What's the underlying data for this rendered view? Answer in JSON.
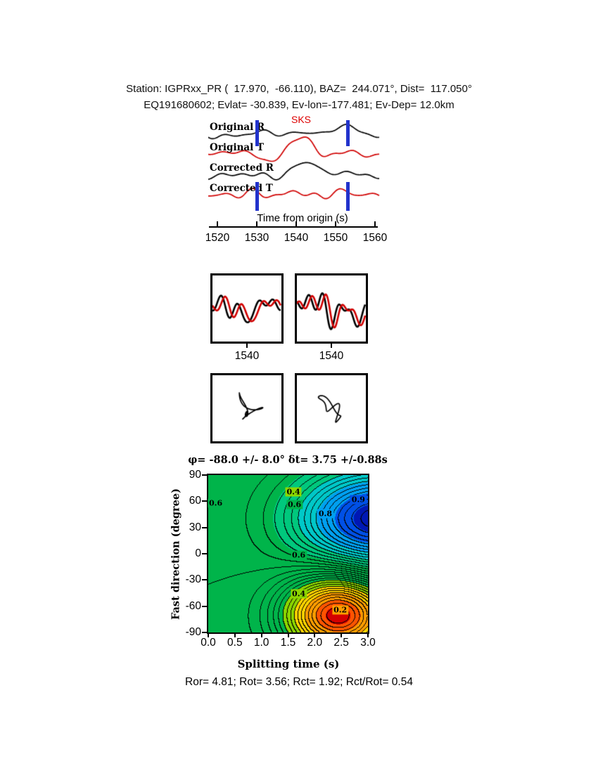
{
  "header": {
    "line1": "Station: IGPRxx_PR (  17.970,  -66.110), BAZ=  244.071°, Dist=  117.050°",
    "line2": "EQ191680602; Evlat= -30.839, Ev-lon=-177.481; Ev-Dep= 12.0km"
  },
  "seismogram": {
    "phase_label": "SKS",
    "phase_label_color": "#dd0000",
    "traces": [
      {
        "label": "Original R",
        "color": "#000000"
      },
      {
        "label": "Original T",
        "color": "#d00000"
      },
      {
        "label": "Corrected R",
        "color": "#000000"
      },
      {
        "label": "Corrected T",
        "color": "#d00000"
      }
    ],
    "window_marker_color": "#2233cc",
    "window_times_s": [
      1530,
      1553
    ],
    "xlabel": "Time from origin (s)",
    "xticks": [
      "1520",
      "1530",
      "1540",
      "1550",
      "1560"
    ]
  },
  "comparison": {
    "trace_colors": [
      "#000000",
      "#d00000"
    ],
    "panels": [
      {
        "tick_label": "1540"
      },
      {
        "tick_label": "1540"
      }
    ]
  },
  "particle_motion": {
    "trace_color": "#000000",
    "panel_count": 2
  },
  "footer": {
    "text": "Ror= 4.81; Rot= 3.56; Rct= 1.92; Rct/Rot= 0.54"
  },
  "chart_data": {
    "type": "heatmap",
    "subtype": "contour-map-of-splitting-misfit",
    "title": "φ= -88.0 +/- 8.0° δt= 3.75 +/-0.88s",
    "xlabel": "Splitting time (s)",
    "ylabel": "Fast direction (degree)",
    "xlim": [
      0.0,
      3.0
    ],
    "ylim": [
      -90,
      90
    ],
    "xticks": [
      "0.0",
      "0.5",
      "1.0",
      "1.5",
      "2.0",
      "2.5",
      "3.0"
    ],
    "yticks": [
      "90",
      "60",
      "30",
      "0",
      "-30",
      "-60",
      "-90"
    ],
    "grid": false,
    "legend": "none",
    "contour_interval": 0.025,
    "best_fit": {
      "fast_direction_deg": -88.0,
      "fast_direction_err_deg": 8.0,
      "splitting_time_s": 3.75,
      "splitting_time_err_s": 0.88
    },
    "quality_stats": {
      "Ror": 4.81,
      "Rot": 3.56,
      "Rct": 1.92,
      "Rct_over_Rot": 0.54
    },
    "labels": [
      {
        "text": "0.4",
        "value": 0.4,
        "dt": 1.6,
        "phi": 71
      },
      {
        "text": "0.6",
        "value": 0.6,
        "dt": 1.62,
        "phi": 56
      },
      {
        "text": "0.8",
        "value": 0.8,
        "dt": 2.2,
        "phi": 46
      },
      {
        "text": "0.9",
        "value": 0.9,
        "dt": 2.82,
        "phi": 62
      },
      {
        "text": "0.6",
        "value": 0.6,
        "dt": 0.14,
        "phi": 58
      },
      {
        "text": "0.6",
        "value": 0.6,
        "dt": 1.7,
        "phi": -2
      },
      {
        "text": "0.4",
        "value": 0.4,
        "dt": 1.7,
        "phi": -46
      },
      {
        "text": "0.2",
        "value": 0.2,
        "dt": 2.48,
        "phi": -64
      }
    ],
    "regions": {
      "high_value_blue": {
        "dt": 3.0,
        "phi": 40,
        "value": 0.95
      },
      "low_value_red": {
        "dt": 2.45,
        "phi": -70,
        "value": 0.1
      },
      "background_green_value": 0.55
    }
  },
  "render": {
    "top_traces": [
      {
        "seed": 11,
        "noise": 5.0,
        "pulse": 10,
        "pulseT": 0.78,
        "pulseW": 0.1,
        "color": "#000000"
      },
      {
        "seed": 22,
        "noise": 5.0,
        "pulse": 26,
        "pulseT": 0.52,
        "pulseW": 0.16,
        "color": "#d00000"
      },
      {
        "seed": 33,
        "noise": 5.0,
        "pulse": 18,
        "pulseT": 0.56,
        "pulseW": 0.14,
        "color": "#000000"
      },
      {
        "seed": 44,
        "noise": 6.0,
        "pulse": 6,
        "pulseT": 0.5,
        "pulseW": 0.12,
        "color": "#d00000"
      }
    ],
    "cmp": [
      {
        "seed": 5,
        "shift": 0.06
      },
      {
        "seed": 9,
        "shift": 0.05
      }
    ],
    "pm": [
      {
        "seed": 7
      },
      {
        "seed": 13
      }
    ],
    "surface": {
      "base": 0.55,
      "peak": {
        "dt": 3.2,
        "phi": 40,
        "sdt": 2.2,
        "sphi": 55,
        "a": 0.42
      },
      "trough": {
        "dt": 2.45,
        "phi": -70,
        "sdt": 1.0,
        "sphi": 45,
        "a": 0.45
      }
    },
    "colormap": [
      {
        "upto": 0.13,
        "color": "#d40000"
      },
      {
        "upto": 0.18,
        "color": "#ff5400"
      },
      {
        "upto": 0.25,
        "color": "#ff9c00"
      },
      {
        "upto": 0.33,
        "color": "#ffd300"
      },
      {
        "upto": 0.4,
        "color": "#8cd600"
      },
      {
        "upto": 0.62,
        "color": "#00b44a"
      },
      {
        "upto": 0.7,
        "color": "#00c87d"
      },
      {
        "upto": 0.78,
        "color": "#00c8c8"
      },
      {
        "upto": 0.86,
        "color": "#00a0f0"
      },
      {
        "upto": 0.93,
        "color": "#0050e6"
      },
      {
        "upto": 1.01,
        "color": "#0018b4"
      }
    ]
  }
}
